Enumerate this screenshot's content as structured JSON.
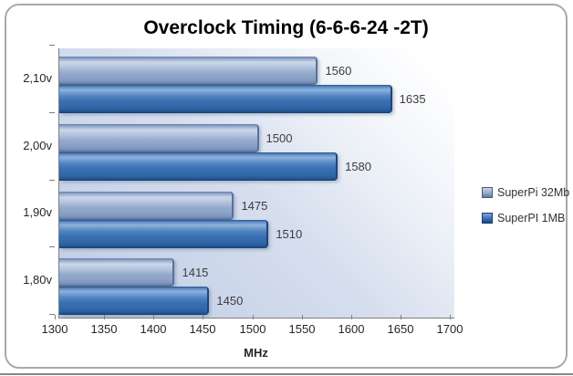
{
  "chart_data": {
    "type": "bar",
    "orientation": "horizontal",
    "title": "Overclock Timing (6-6-6-24 -2T)",
    "categories": [
      "2,10v",
      "2,00v",
      "1,90v",
      "1,80v"
    ],
    "series": [
      {
        "name": "SuperPi 32Mb",
        "color": "#95abcd",
        "values": [
          1560,
          1500,
          1475,
          1415
        ]
      },
      {
        "name": "SuperPI 1MB",
        "color": "#3b71b3",
        "values": [
          1635,
          1580,
          1510,
          1450
        ]
      }
    ],
    "data_labels": [
      [
        1560,
        1500,
        1475,
        1415
      ],
      [
        1635,
        1580,
        1510,
        1450
      ]
    ],
    "xlabel": "MHz",
    "xlim": [
      1300,
      1700
    ],
    "xticks": [
      1300,
      1350,
      1400,
      1450,
      1500,
      1550,
      1600,
      1650,
      1700
    ],
    "grid": false,
    "legend_position": "right",
    "plot_background": {
      "from": "#ffffff",
      "to": "#c7d2e8"
    }
  },
  "frame": {
    "border_color": "#a9a9a9",
    "bottom_strip_color": "#878787"
  }
}
